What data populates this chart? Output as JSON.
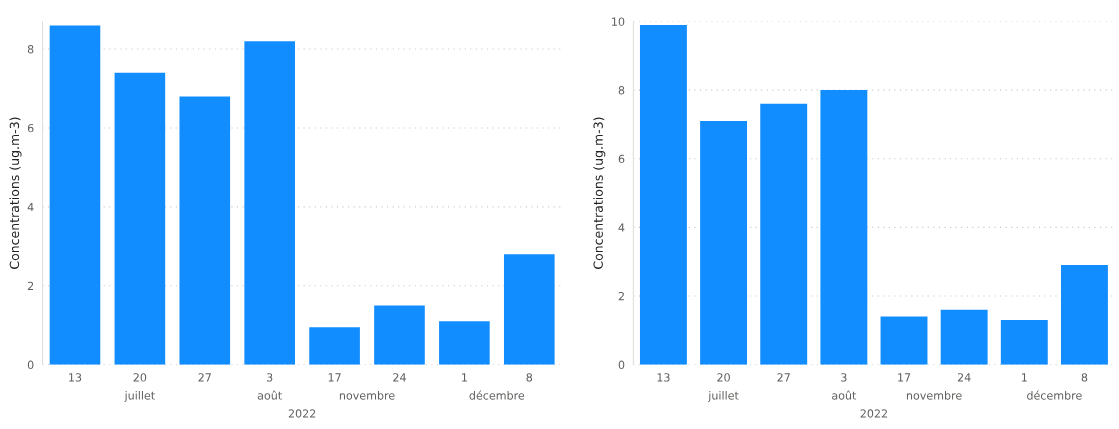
{
  "chart_data": [
    {
      "type": "bar",
      "ylabel": "Concentrations (ug.m-3)",
      "categories": [
        "13",
        "20",
        "27",
        "3",
        "17",
        "24",
        "1",
        "8"
      ],
      "values": [
        8.6,
        7.4,
        6.8,
        8.2,
        0.95,
        1.5,
        1.1,
        2.8
      ],
      "color": "#118dff",
      "ylim": [
        0,
        8.7
      ],
      "yticks": [
        0,
        2,
        4,
        6,
        8
      ],
      "grid": "y",
      "annotations": [
        "juillet",
        "août",
        "novembre",
        "décembre",
        "2022"
      ]
    },
    {
      "type": "bar",
      "ylabel": "Concentrations (ug.m-3)",
      "categories": [
        "13",
        "20",
        "27",
        "3",
        "17",
        "24",
        "1",
        "8"
      ],
      "values": [
        9.9,
        7.1,
        7.6,
        8.0,
        1.4,
        1.6,
        1.3,
        2.9
      ],
      "color": "#118dff",
      "ylim": [
        0,
        10
      ],
      "yticks": [
        0,
        2,
        4,
        6,
        8,
        10
      ],
      "grid": "y",
      "annotations": [
        "juillet",
        "août",
        "novembre",
        "décembre",
        "2022"
      ]
    }
  ]
}
